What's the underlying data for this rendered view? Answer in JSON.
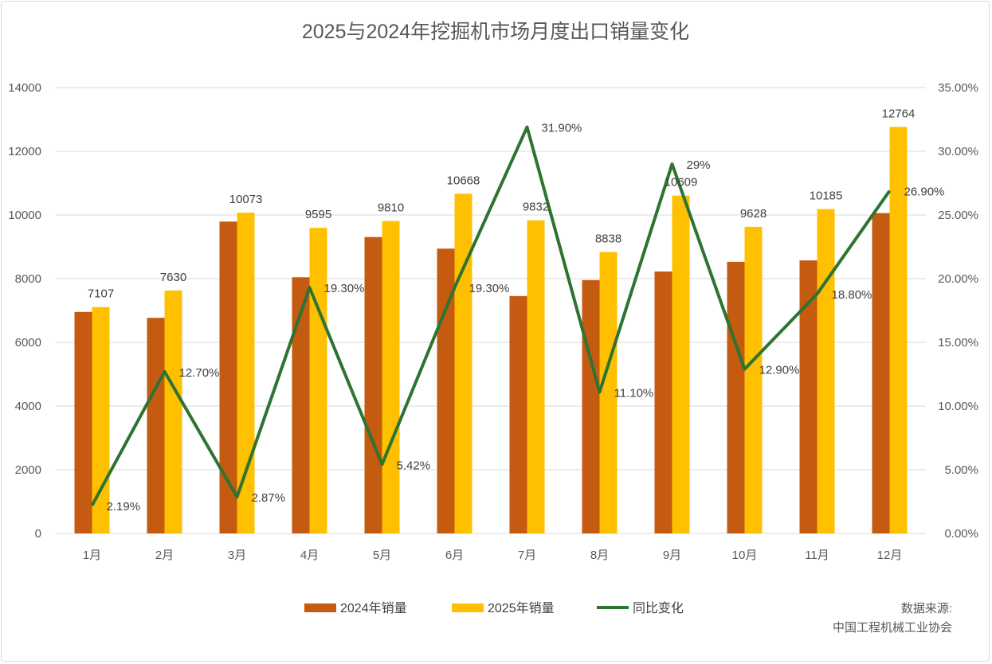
{
  "chart_data": {
    "type": "bar",
    "title": "2025与2024年挖掘机市场月度出口销量变化",
    "categories": [
      "1月",
      "2月",
      "3月",
      "4月",
      "5月",
      "6月",
      "7月",
      "8月",
      "9月",
      "10月",
      "11月",
      "12月"
    ],
    "series": [
      {
        "name": "2024年销量",
        "kind": "bar",
        "axis": "left",
        "color": "#C55A11",
        "values": [
          6955,
          6770,
          9792,
          8043,
          9306,
          8942,
          7454,
          7955,
          8224,
          8528,
          8573,
          10058
        ]
      },
      {
        "name": "2025年销量",
        "kind": "bar",
        "axis": "left",
        "color": "#FFC000",
        "values": [
          7107,
          7630,
          10073,
          9595,
          9810,
          10668,
          9832,
          8838,
          10609,
          9628,
          10185,
          12764
        ],
        "labels": [
          "7107",
          "7630",
          "10073",
          "9595",
          "9810",
          "10668",
          "9832",
          "8838",
          "10609",
          "9628",
          "10185",
          "12764"
        ]
      },
      {
        "name": "同比变化",
        "kind": "line",
        "axis": "right",
        "color": "#2E7430",
        "values": [
          2.19,
          12.7,
          2.87,
          19.3,
          5.42,
          19.3,
          31.9,
          11.1,
          29,
          12.9,
          18.8,
          26.9
        ],
        "labels": [
          "2.19%",
          "12.70%",
          "2.87%",
          "19.30%",
          "5.42%",
          "19.30%",
          "31.90%",
          "11.10%",
          "29%",
          "12.90%",
          "18.80%",
          "26.90%"
        ]
      }
    ],
    "y_left": {
      "range": [
        0,
        14000
      ],
      "ticks": [
        "0",
        "2000",
        "4000",
        "6000",
        "8000",
        "10000",
        "12000",
        "14000"
      ]
    },
    "y_right": {
      "range": [
        0,
        35
      ],
      "ticks": [
        "0.00%",
        "5.00%",
        "10.00%",
        "15.00%",
        "20.00%",
        "25.00%",
        "30.00%",
        "35.00%"
      ]
    },
    "grid": true,
    "legend": "bottom"
  },
  "source": {
    "label": "数据来源:",
    "org": "中国工程机械工业协会"
  }
}
